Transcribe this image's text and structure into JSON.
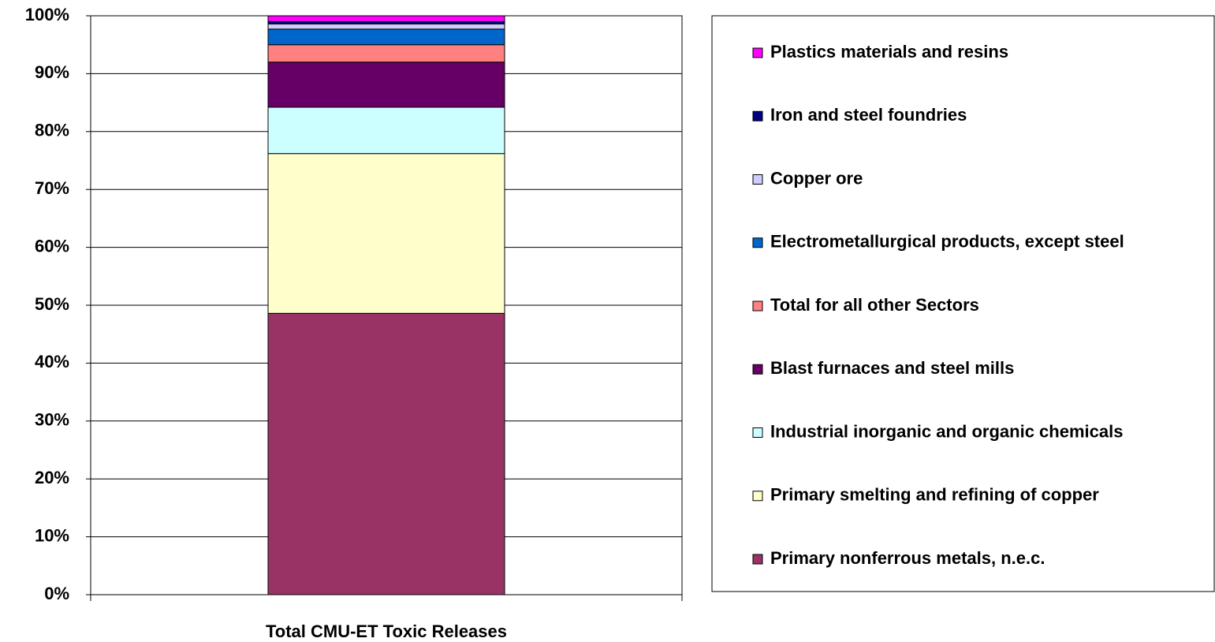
{
  "chart_data": {
    "type": "stacked_bar",
    "categories": [
      "Total CMU-ET Toxic Releases"
    ],
    "series": [
      {
        "name": "Primary nonferrous metals, n.e.c.",
        "color": "#993366",
        "values": [
          48.6
        ]
      },
      {
        "name": "Primary smelting and refining of copper",
        "color": "#FFFFCC",
        "values": [
          27.6
        ]
      },
      {
        "name": "Industrial inorganic and organic chemicals",
        "color": "#CCFFFF",
        "values": [
          8.0
        ]
      },
      {
        "name": "Blast furnaces and steel mills",
        "color": "#660066",
        "values": [
          7.8
        ]
      },
      {
        "name": "Total for all other Sectors",
        "color": "#FF8080",
        "values": [
          3.0
        ]
      },
      {
        "name": "Electrometallurgical products, except steel",
        "color": "#0066CC",
        "values": [
          2.7
        ]
      },
      {
        "name": "Copper ore",
        "color": "#CCCCFF",
        "values": [
          0.9
        ]
      },
      {
        "name": "Iron and steel foundries",
        "color": "#000080",
        "values": [
          0.4
        ]
      },
      {
        "name": "Plastics materials and resins",
        "color": "#FF00FF",
        "values": [
          1.0
        ]
      }
    ],
    "ylim": [
      0,
      100
    ],
    "yticks": [
      {
        "value": 0,
        "label": "0%"
      },
      {
        "value": 10,
        "label": "10%"
      },
      {
        "value": 20,
        "label": "20%"
      },
      {
        "value": 30,
        "label": "30%"
      },
      {
        "value": 40,
        "label": "40%"
      },
      {
        "value": 50,
        "label": "50%"
      },
      {
        "value": 60,
        "label": "60%"
      },
      {
        "value": 70,
        "label": "70%"
      },
      {
        "value": 80,
        "label": "80%"
      },
      {
        "value": 90,
        "label": "90%"
      },
      {
        "value": 100,
        "label": "100%"
      }
    ],
    "grid": true,
    "legend": "right"
  }
}
